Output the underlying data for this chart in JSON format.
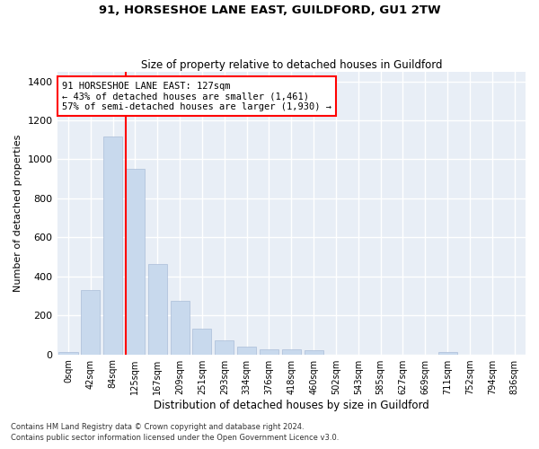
{
  "title": "91, HORSESHOE LANE EAST, GUILDFORD, GU1 2TW",
  "subtitle": "Size of property relative to detached houses in Guildford",
  "xlabel": "Distribution of detached houses by size in Guildford",
  "ylabel": "Number of detached properties",
  "bar_color": "#c8d9ed",
  "bar_edge_color": "#aabdd8",
  "background_color": "#e8eef6",
  "grid_color": "#ffffff",
  "bin_labels": [
    "0sqm",
    "42sqm",
    "84sqm",
    "125sqm",
    "167sqm",
    "209sqm",
    "251sqm",
    "293sqm",
    "334sqm",
    "376sqm",
    "418sqm",
    "460sqm",
    "502sqm",
    "543sqm",
    "585sqm",
    "627sqm",
    "669sqm",
    "711sqm",
    "752sqm",
    "794sqm",
    "836sqm"
  ],
  "bar_values": [
    10,
    330,
    1115,
    950,
    465,
    275,
    130,
    70,
    40,
    25,
    27,
    22,
    0,
    0,
    0,
    0,
    0,
    12,
    0,
    0,
    0
  ],
  "red_line_bin": 3,
  "annotation_text1": "91 HORSESHOE LANE EAST: 127sqm",
  "annotation_text2": "← 43% of detached houses are smaller (1,461)",
  "annotation_text3": "57% of semi-detached houses are larger (1,930) →",
  "ylim": [
    0,
    1450
  ],
  "yticks": [
    0,
    200,
    400,
    600,
    800,
    1000,
    1200,
    1400
  ],
  "footnote1": "Contains HM Land Registry data © Crown copyright and database right 2024.",
  "footnote2": "Contains public sector information licensed under the Open Government Licence v3.0."
}
